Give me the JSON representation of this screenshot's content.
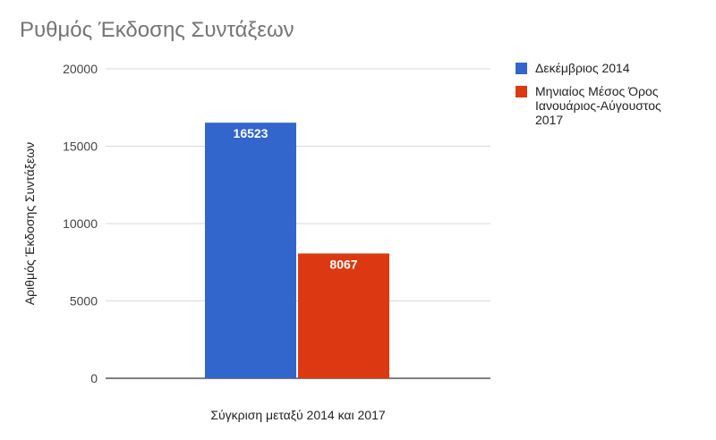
{
  "chart_data": {
    "type": "bar",
    "title": "Ρυθμός Έκδοσης Συντάξεων",
    "xlabel": "Σύγκριση μεταξύ 2014 και 2017",
    "ylabel": "Αριθμός Έκδοσης Συντάξεων",
    "ylim": [
      0,
      20000
    ],
    "yticks": [
      0,
      5000,
      10000,
      15000,
      20000
    ],
    "grid": true,
    "legend_position": "right",
    "categories": [
      "Σύγκριση μεταξύ 2014 και 2017"
    ],
    "series": [
      {
        "name": "Δεκέμβριος 2014",
        "values": [
          16523
        ],
        "color": "#3366cc"
      },
      {
        "name": "Μηνιαίος Μέσος Όρος Ιανουάριος-Αύγουστος 2017",
        "values": [
          8067
        ],
        "color": "#dc3912"
      }
    ],
    "data_labels": [
      "16523",
      "8067"
    ]
  }
}
